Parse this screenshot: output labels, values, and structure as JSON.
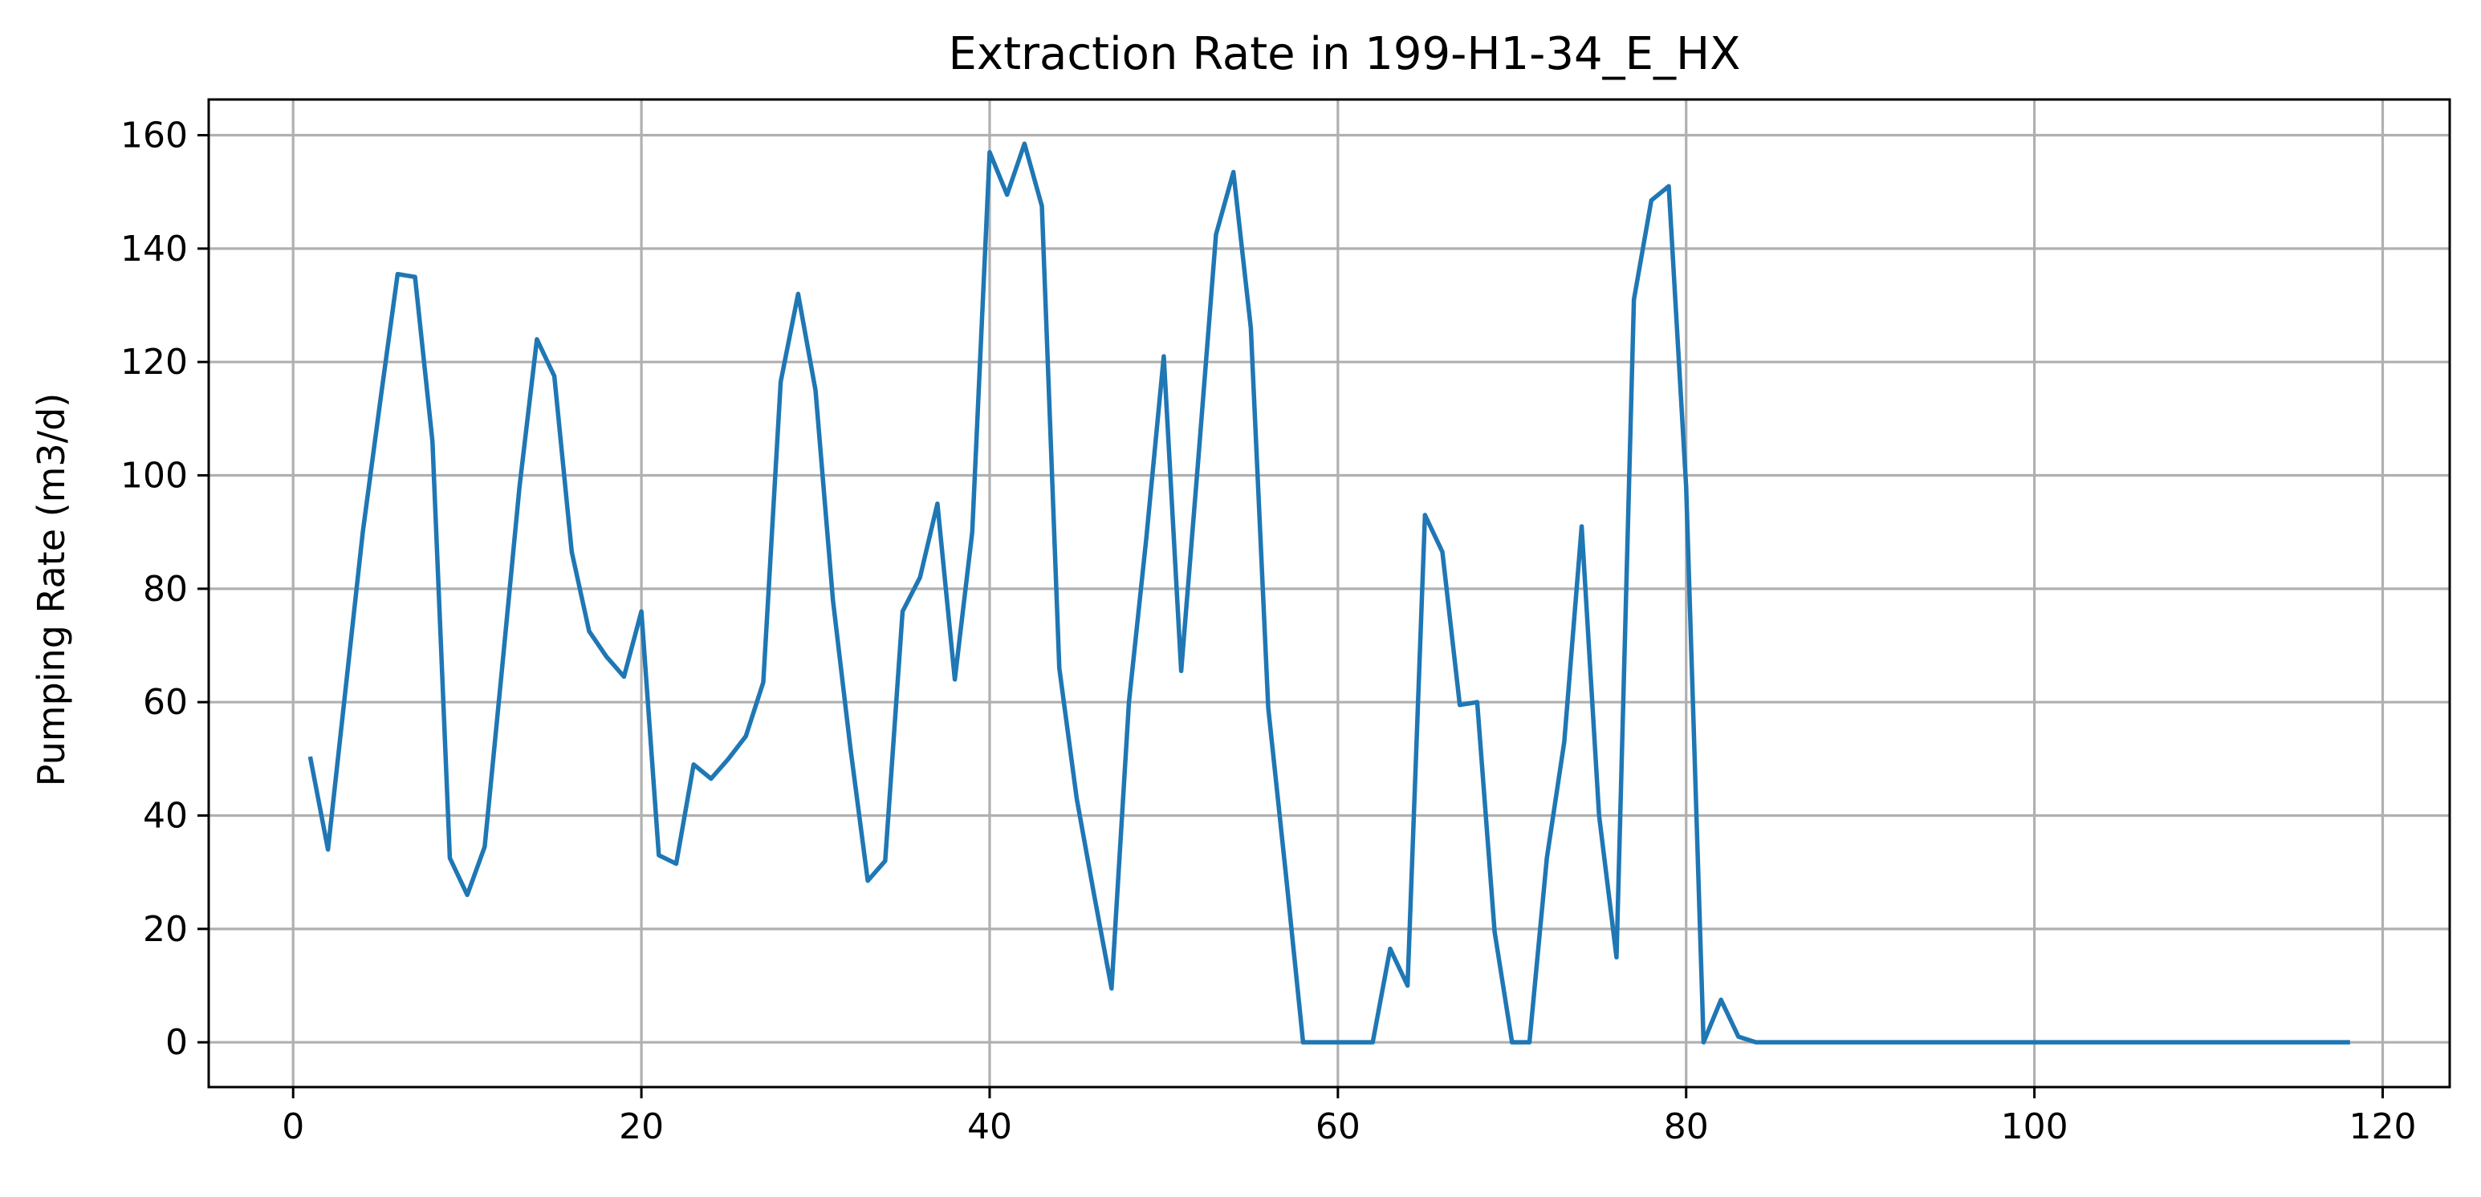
{
  "chart_data": {
    "type": "line",
    "title": "Extraction Rate in 199-H1-34_E_HX",
    "xlabel": "",
    "ylabel": "Pumping Rate (m3/d)",
    "xlim": [
      -4.85,
      123.85
    ],
    "ylim": [
      -7.9,
      166.3
    ],
    "x_ticks": [
      0,
      20,
      40,
      60,
      80,
      100,
      120
    ],
    "x_tick_labels": [
      "0",
      "20",
      "40",
      "60",
      "80",
      "100",
      "120"
    ],
    "y_ticks": [
      0,
      20,
      40,
      60,
      80,
      100,
      120,
      140,
      160
    ],
    "y_tick_labels": [
      "0",
      "20",
      "40",
      "60",
      "80",
      "100",
      "120",
      "140",
      "160"
    ],
    "grid": true,
    "series": [
      {
        "color": "#1f77b4",
        "x": [
          1,
          2,
          3,
          4,
          5,
          6,
          7,
          8,
          9,
          10,
          11,
          12,
          13,
          14,
          15,
          16,
          17,
          18,
          19,
          20,
          21,
          22,
          23,
          24,
          25,
          26,
          27,
          28,
          29,
          30,
          31,
          32,
          33,
          34,
          35,
          36,
          37,
          38,
          39,
          40,
          41,
          42,
          43,
          44,
          45,
          46,
          47,
          48,
          49,
          50,
          51,
          52,
          53,
          54,
          55,
          56,
          57,
          58,
          59,
          60,
          61,
          62,
          63,
          64,
          65,
          66,
          67,
          68,
          69,
          70,
          71,
          72,
          73,
          74,
          75,
          76,
          77,
          78,
          79,
          80,
          81,
          82,
          83,
          84,
          85,
          86,
          87,
          88,
          89,
          90,
          91,
          92,
          93,
          94,
          95,
          96,
          97,
          98,
          99,
          100,
          101,
          102,
          103,
          104,
          105,
          106,
          107,
          108,
          109,
          110,
          111,
          112,
          113,
          114,
          115,
          116,
          117,
          118
        ],
        "y": [
          50,
          34,
          62,
          90,
          113,
          135.5,
          135,
          106,
          32.5,
          26,
          34.5,
          66,
          98,
          124,
          117.5,
          86.5,
          72.5,
          68,
          64.5,
          76,
          33,
          31.5,
          49,
          46.5,
          50,
          54,
          63.5,
          116.5,
          132,
          115,
          78,
          52,
          28.5,
          32,
          76,
          82,
          95,
          64,
          90,
          157,
          149.5,
          158.5,
          147.5,
          66,
          43,
          26,
          9.5,
          60,
          89,
          121,
          65.5,
          103.5,
          142.5,
          153.5,
          126,
          59,
          30,
          0,
          0,
          0,
          0,
          0,
          16.5,
          10,
          93,
          86.5,
          59.5,
          60,
          19.5,
          0,
          0,
          32.5,
          53,
          91,
          40,
          15,
          131,
          148.5,
          151,
          98,
          0,
          7.5,
          1,
          0,
          0,
          0,
          0,
          0,
          0,
          0,
          0,
          0,
          0,
          0,
          0,
          0,
          0,
          0,
          0,
          0,
          0,
          0,
          0,
          0,
          0,
          0,
          0,
          0,
          0,
          0,
          0,
          0,
          0,
          0,
          0,
          0,
          0,
          0
        ]
      }
    ]
  }
}
